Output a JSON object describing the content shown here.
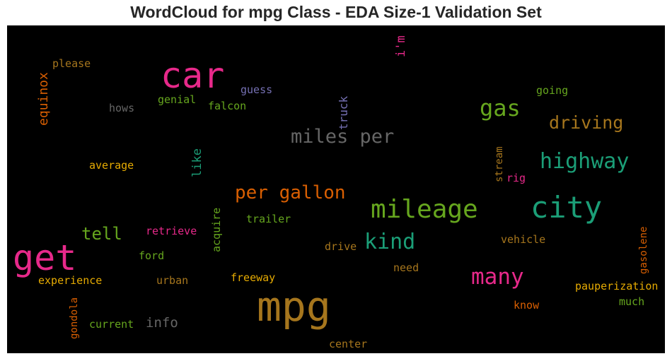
{
  "chart_data": {
    "type": "wordcloud",
    "title": "WordCloud for mpg Class - EDA Size-1 Validation Set",
    "background": "#000000",
    "words": [
      {
        "text": "car",
        "size": 50,
        "color": "#e7298a",
        "rotated": false
      },
      {
        "text": "get",
        "size": 50,
        "color": "#e7298a",
        "rotated": false
      },
      {
        "text": "mpg",
        "size": 58,
        "color": "#a6761d",
        "rotated": false
      },
      {
        "text": "city",
        "size": 42,
        "color": "#1b9e77",
        "rotated": false
      },
      {
        "text": "mileage",
        "size": 36,
        "color": "#66a61e",
        "rotated": false
      },
      {
        "text": "miles per",
        "size": 27,
        "color": "#666666",
        "rotated": false
      },
      {
        "text": "gas",
        "size": 32,
        "color": "#66a61e",
        "rotated": false
      },
      {
        "text": "highway",
        "size": 30,
        "color": "#1b9e77",
        "rotated": false
      },
      {
        "text": "many",
        "size": 31,
        "color": "#e7298a",
        "rotated": false
      },
      {
        "text": "kind",
        "size": 30,
        "color": "#1b9e77",
        "rotated": false
      },
      {
        "text": "per gallon",
        "size": 26,
        "color": "#d95f02",
        "rotated": false
      },
      {
        "text": "driving",
        "size": 25,
        "color": "#a6761d",
        "rotated": false
      },
      {
        "text": "tell",
        "size": 24,
        "color": "#66a61e",
        "rotated": false
      },
      {
        "text": "info",
        "size": 19,
        "color": "#666666",
        "rotated": false
      },
      {
        "text": "equinox",
        "size": 18,
        "color": "#d95f02",
        "rotated": true
      },
      {
        "text": "like",
        "size": 17,
        "color": "#1b9e77",
        "rotated": true
      },
      {
        "text": "truck",
        "size": 16,
        "color": "#7570b3",
        "rotated": true
      },
      {
        "text": "i'm",
        "size": 17,
        "color": "#e7298a",
        "rotated": true
      },
      {
        "text": "please",
        "size": 15,
        "color": "#a6761d",
        "rotated": false
      },
      {
        "text": "guess",
        "size": 15,
        "color": "#7570b3",
        "rotated": false
      },
      {
        "text": "genial",
        "size": 15,
        "color": "#66a61e",
        "rotated": false
      },
      {
        "text": "hows",
        "size": 15,
        "color": "#666666",
        "rotated": false
      },
      {
        "text": "falcon",
        "size": 15,
        "color": "#66a61e",
        "rotated": false
      },
      {
        "text": "going",
        "size": 15,
        "color": "#66a61e",
        "rotated": false
      },
      {
        "text": "average",
        "size": 15,
        "color": "#e6ab02",
        "rotated": false
      },
      {
        "text": "stream",
        "size": 14,
        "color": "#a6761d",
        "rotated": true
      },
      {
        "text": "rig",
        "size": 15,
        "color": "#e7298a",
        "rotated": false
      },
      {
        "text": "retrieve",
        "size": 15,
        "color": "#e7298a",
        "rotated": false
      },
      {
        "text": "acquire",
        "size": 15,
        "color": "#66a61e",
        "rotated": true
      },
      {
        "text": "trailer",
        "size": 15,
        "color": "#66a61e",
        "rotated": false
      },
      {
        "text": "vehicle",
        "size": 15,
        "color": "#a6761d",
        "rotated": false
      },
      {
        "text": "gasolene",
        "size": 14,
        "color": "#d95f02",
        "rotated": true
      },
      {
        "text": "drive",
        "size": 15,
        "color": "#a6761d",
        "rotated": false
      },
      {
        "text": "ford",
        "size": 15,
        "color": "#66a61e",
        "rotated": false
      },
      {
        "text": "need",
        "size": 15,
        "color": "#a6761d",
        "rotated": false
      },
      {
        "text": "freeway",
        "size": 15,
        "color": "#e6ab02",
        "rotated": false
      },
      {
        "text": "experience",
        "size": 15,
        "color": "#e6ab02",
        "rotated": false
      },
      {
        "text": "urban",
        "size": 15,
        "color": "#a6761d",
        "rotated": false
      },
      {
        "text": "pauperization",
        "size": 15,
        "color": "#e6ab02",
        "rotated": false
      },
      {
        "text": "know",
        "size": 15,
        "color": "#d95f02",
        "rotated": false
      },
      {
        "text": "much",
        "size": 15,
        "color": "#66a61e",
        "rotated": false
      },
      {
        "text": "gondola",
        "size": 14,
        "color": "#d95f02",
        "rotated": true
      },
      {
        "text": "current",
        "size": 15,
        "color": "#66a61e",
        "rotated": false
      },
      {
        "text": "center",
        "size": 15,
        "color": "#a6761d",
        "rotated": false
      }
    ]
  }
}
